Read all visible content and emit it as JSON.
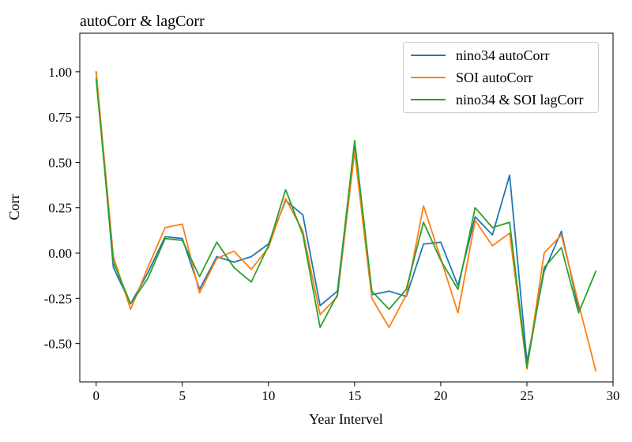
{
  "chart_data": {
    "type": "line",
    "title": "autoCorr & lagCorr",
    "xlabel": "Year Intervel",
    "ylabel": "Corr",
    "grid": false,
    "legend_position": "upper right",
    "xlim": [
      -0.95,
      30.0
    ],
    "ylim": [
      -0.711,
      1.213
    ],
    "xticks": [
      0,
      5,
      10,
      15,
      20,
      25,
      30
    ],
    "xtick_labels": [
      "0",
      "5",
      "10",
      "15",
      "20",
      "25",
      "30"
    ],
    "yticks": [
      1.0,
      0.75,
      0.5,
      0.25,
      0.0,
      -0.25,
      -0.5
    ],
    "ytick_labels": [
      "1.00",
      "0.75",
      "0.50",
      "0.25",
      "0.00",
      "-0.25",
      "-0.50"
    ],
    "x_is_index": true,
    "series": [
      {
        "name": "nino34 autoCorr",
        "color": "#1f77b4",
        "values": [
          1.0,
          -0.08,
          -0.28,
          -0.11,
          0.09,
          0.08,
          -0.2,
          -0.02,
          -0.05,
          -0.02,
          0.05,
          0.29,
          0.21,
          -0.29,
          -0.21,
          0.6,
          -0.23,
          -0.21,
          -0.24,
          0.05,
          0.06,
          -0.18,
          0.2,
          0.1,
          0.43,
          -0.6,
          -0.1,
          0.12,
          -0.31
        ]
      },
      {
        "name": "SOI autoCorr",
        "color": "#ff7f0e",
        "values": [
          1.0,
          -0.02,
          -0.31,
          -0.08,
          0.14,
          0.16,
          -0.22,
          -0.03,
          0.01,
          -0.09,
          0.03,
          0.3,
          0.12,
          -0.34,
          -0.24,
          0.56,
          -0.25,
          -0.41,
          -0.23,
          0.26,
          -0.03,
          -0.33,
          0.18,
          0.04,
          0.11,
          -0.64,
          0.0,
          0.1,
          -0.28,
          -0.65
        ]
      },
      {
        "name": "nino34 & SOI lagCorr",
        "color": "#2ca02c",
        "values": [
          0.96,
          -0.05,
          -0.28,
          -0.14,
          0.08,
          0.07,
          -0.13,
          0.06,
          -0.08,
          -0.16,
          0.04,
          0.35,
          0.1,
          -0.41,
          -0.23,
          0.62,
          -0.21,
          -0.31,
          -0.2,
          0.17,
          -0.04,
          -0.2,
          0.25,
          0.14,
          0.17,
          -0.63,
          -0.08,
          0.03,
          -0.33,
          -0.1
        ]
      }
    ]
  }
}
